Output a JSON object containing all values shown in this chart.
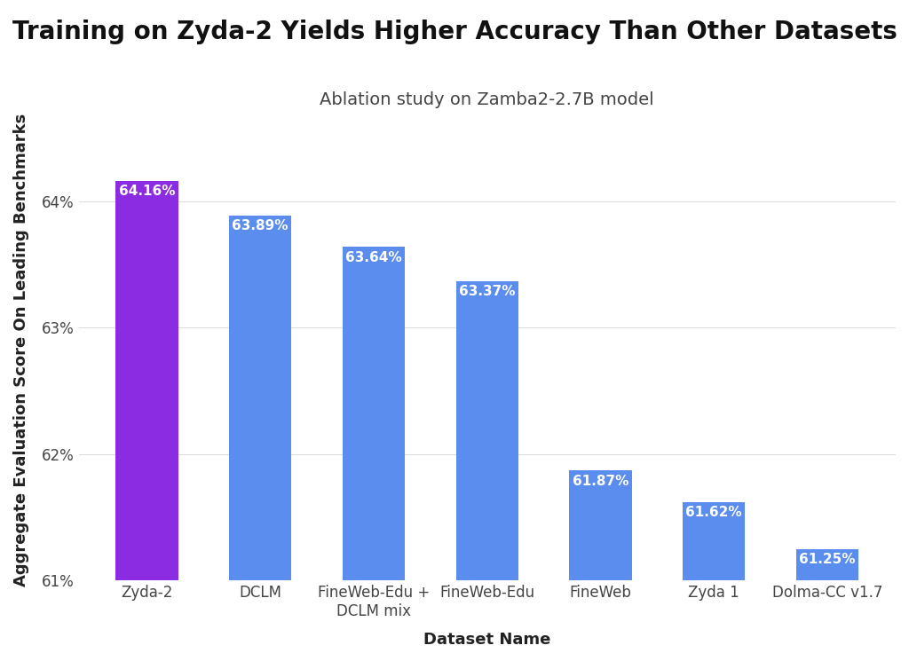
{
  "title": "Training on Zyda-2 Yields Higher Accuracy Than Other Datasets",
  "subtitle": "Ablation study on Zamba2-2.7B model",
  "xlabel": "Dataset Name",
  "ylabel": "Aggregate Evaluation Score On Leading Benchmarks",
  "categories": [
    "Zyda-2",
    "DCLM",
    "FineWeb-Edu +\nDCLM mix",
    "FineWeb-Edu",
    "FineWeb",
    "Zyda 1",
    "Dolma-CC v1.7"
  ],
  "values": [
    64.16,
    63.89,
    63.64,
    63.37,
    61.87,
    61.62,
    61.25
  ],
  "bar_colors": [
    "#8B2BE2",
    "#5B8DEF",
    "#5B8DEF",
    "#5B8DEF",
    "#5B8DEF",
    "#5B8DEF",
    "#5B8DEF"
  ],
  "label_colors": [
    "white",
    "white",
    "white",
    "white",
    "white",
    "white",
    "white"
  ],
  "ylim_min": 61.0,
  "ylim_max": 64.65,
  "yticks": [
    61,
    62,
    63,
    64
  ],
  "ytick_labels": [
    "61%",
    "62%",
    "63%",
    "64%"
  ],
  "background_color": "#FFFFFF",
  "grid_color": "#DDDDDD",
  "title_fontsize": 20,
  "subtitle_fontsize": 14,
  "axis_label_fontsize": 13,
  "tick_fontsize": 12,
  "bar_label_fontsize": 11
}
